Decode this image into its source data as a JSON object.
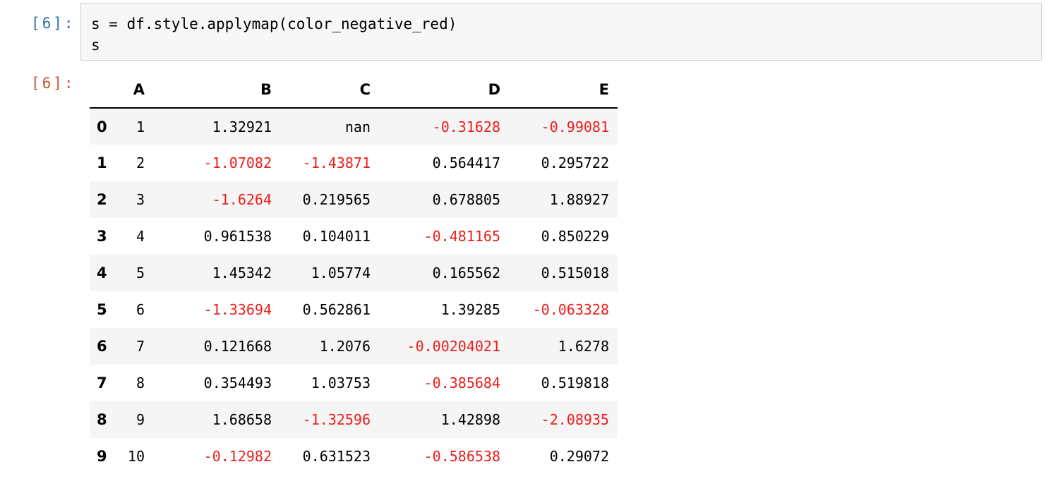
{
  "cell": {
    "in_prompt": "[6]:",
    "out_prompt": "[6]:",
    "code": [
      "s = df.style.applymap(color_negative_red)",
      "s"
    ]
  },
  "table": {
    "columns": [
      "",
      "A",
      "B",
      "C",
      "D",
      "E"
    ],
    "negative_color": "#ee1c1c",
    "rows": [
      {
        "index": "0",
        "cells": [
          "1",
          "1.32921",
          "nan",
          "-0.31628",
          "-0.99081"
        ]
      },
      {
        "index": "1",
        "cells": [
          "2",
          "-1.07082",
          "-1.43871",
          "0.564417",
          "0.295722"
        ]
      },
      {
        "index": "2",
        "cells": [
          "3",
          "-1.6264",
          "0.219565",
          "0.678805",
          "1.88927"
        ]
      },
      {
        "index": "3",
        "cells": [
          "4",
          "0.961538",
          "0.104011",
          "-0.481165",
          "0.850229"
        ]
      },
      {
        "index": "4",
        "cells": [
          "5",
          "1.45342",
          "1.05774",
          "0.165562",
          "0.515018"
        ]
      },
      {
        "index": "5",
        "cells": [
          "6",
          "-1.33694",
          "0.562861",
          "1.39285",
          "-0.063328"
        ]
      },
      {
        "index": "6",
        "cells": [
          "7",
          "0.121668",
          "1.2076",
          "-0.00204021",
          "1.6278"
        ]
      },
      {
        "index": "7",
        "cells": [
          "8",
          "0.354493",
          "1.03753",
          "-0.385684",
          "0.519818"
        ]
      },
      {
        "index": "8",
        "cells": [
          "9",
          "1.68658",
          "-1.32596",
          "1.42898",
          "-2.08935"
        ]
      },
      {
        "index": "9",
        "cells": [
          "10",
          "-0.12982",
          "0.631523",
          "-0.586538",
          "0.29072"
        ]
      }
    ]
  }
}
